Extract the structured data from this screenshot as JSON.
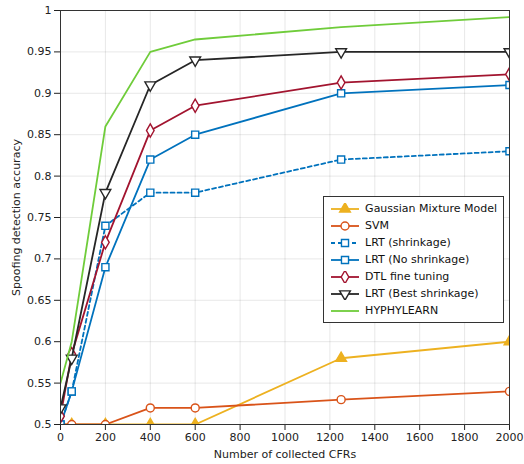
{
  "chart_data": {
    "type": "line",
    "xlabel": "Number of collected CFRs",
    "ylabel": "Spoofing detection accuracy",
    "xlim": [
      0,
      2000
    ],
    "xticks": [
      0,
      200,
      400,
      600,
      800,
      1000,
      1200,
      1400,
      1600,
      1800,
      2000
    ],
    "ylim": [
      0.5,
      1
    ],
    "yticks": [
      0.5,
      0.55,
      0.6,
      0.65,
      0.7,
      0.75,
      0.8,
      0.85,
      0.9,
      0.95,
      1
    ],
    "grid": true,
    "legend": "right",
    "x": [
      0,
      50,
      200,
      400,
      600,
      1250,
      2000
    ],
    "series": [
      {
        "name": "Gaussian Mixture Model",
        "color": "#EDB120",
        "marker": "triangle",
        "line_style": "solid",
        "values": [
          0.5,
          0.5,
          0.5,
          0.5,
          0.5,
          0.58,
          0.6
        ]
      },
      {
        "name": "SVM",
        "color": "#D95319",
        "marker": "circle",
        "line_style": "solid",
        "values": [
          0.5,
          0.5,
          0.5,
          0.52,
          0.52,
          0.53,
          0.54
        ]
      },
      {
        "name": "LRT (shrinkage)",
        "color": "#0072BD",
        "marker": "square",
        "line_style": "dashed",
        "values": [
          0.5,
          0.54,
          0.74,
          0.78,
          0.78,
          0.82,
          0.83
        ]
      },
      {
        "name": "LRT (No shrinkage)",
        "color": "#0072BD",
        "marker": "square",
        "line_style": "solid",
        "values": [
          0.5,
          0.54,
          0.69,
          0.82,
          0.85,
          0.9,
          0.91
        ]
      },
      {
        "name": "DTL fine tuning",
        "color": "#A2142F",
        "marker": "diamond",
        "line_style": "solid",
        "values": [
          0.51,
          0.585,
          0.72,
          0.855,
          0.885,
          0.913,
          0.923
        ]
      },
      {
        "name": "LRT (Best shrinkage)",
        "color": "#262626",
        "marker": "triangle-down",
        "line_style": "solid",
        "values": [
          0.52,
          0.58,
          0.78,
          0.91,
          0.94,
          0.95,
          0.95
        ]
      },
      {
        "name": "HYPHYLEARN",
        "color": "#6FCC3A",
        "marker": "none",
        "line_style": "solid",
        "values": [
          0.55,
          0.6,
          0.86,
          0.95,
          0.965,
          0.98,
          0.992
        ]
      }
    ]
  }
}
